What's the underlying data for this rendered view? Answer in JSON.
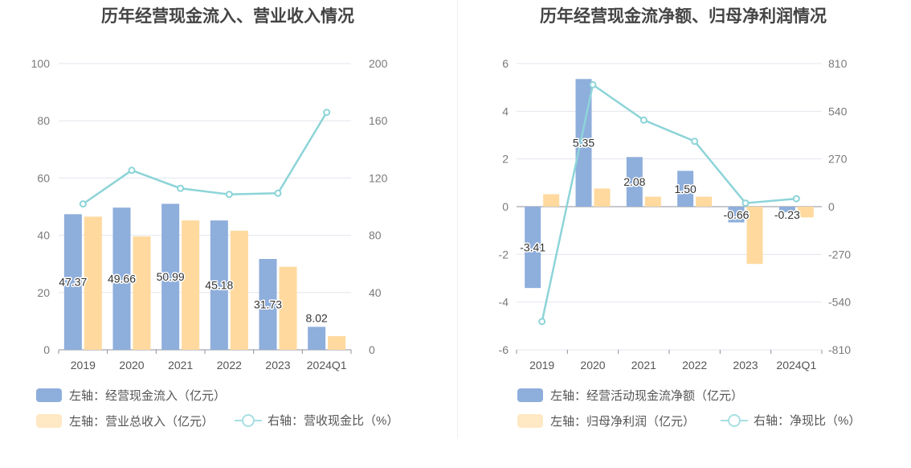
{
  "chart_data": [
    {
      "type": "bar",
      "title": "历年经营现金流入、营业收入情况",
      "categories": [
        "2019",
        "2020",
        "2021",
        "2022",
        "2023",
        "2024Q1"
      ],
      "left_axis": {
        "ylim": [
          0,
          100
        ],
        "ticks": [
          "0",
          "20",
          "40",
          "60",
          "80",
          "100"
        ]
      },
      "right_axis": {
        "ylim": [
          0,
          200
        ],
        "ticks": [
          "0",
          "40",
          "80",
          "120",
          "160",
          "200"
        ]
      },
      "series": [
        {
          "name": "左轴：经营现金流入（亿元）",
          "kind": "bar",
          "axis": "left",
          "color": "#8eaedc",
          "values": [
            47.37,
            49.66,
            50.99,
            45.18,
            31.73,
            8.02
          ],
          "labels": [
            "47.37",
            "49.66",
            "50.99",
            "45.18",
            "31.73",
            "8.02"
          ]
        },
        {
          "name": "左轴：营业总收入（亿元）",
          "kind": "bar",
          "axis": "left",
          "color": "#ffd99e",
          "values": [
            46.5,
            39.6,
            45.2,
            41.6,
            29.0,
            4.8
          ]
        },
        {
          "name": "右轴：营收现金比（%）",
          "kind": "line",
          "axis": "right",
          "color": "#8dd4d8",
          "values": [
            101.9,
            125.4,
            112.8,
            108.6,
            109.4,
            165.9
          ]
        }
      ],
      "grid": true
    },
    {
      "type": "bar",
      "title": "历年经营现金流净额、归母净利润情况",
      "categories": [
        "2019",
        "2020",
        "2021",
        "2022",
        "2023",
        "2024Q1"
      ],
      "left_axis": {
        "ylim": [
          -6,
          6
        ],
        "ticks": [
          "-6",
          "-4",
          "-2",
          "0",
          "2",
          "4",
          "6"
        ]
      },
      "right_axis": {
        "ylim": [
          -810,
          810
        ],
        "ticks": [
          "-810",
          "-540",
          "-270",
          "0",
          "270",
          "540",
          "810"
        ]
      },
      "series": [
        {
          "name": "左轴：经营活动现金流净额（亿元）",
          "kind": "bar",
          "axis": "left",
          "color": "#8eaedc",
          "values": [
            -3.41,
            5.35,
            2.08,
            1.5,
            -0.66,
            -0.23
          ],
          "labels": [
            "-3.41",
            "5.35",
            "2.08",
            "1.50",
            "-0.66",
            "-0.23"
          ]
        },
        {
          "name": "左轴：归母净利润（亿元）",
          "kind": "bar",
          "axis": "left",
          "color": "#ffd99e",
          "values": [
            0.52,
            0.76,
            0.42,
            0.42,
            -2.4,
            -0.45
          ]
        },
        {
          "name": "右轴：净现比（%）",
          "kind": "line",
          "axis": "right",
          "color": "#8dd4d8",
          "values": [
            -650,
            690,
            490,
            370,
            20,
            45
          ]
        }
      ],
      "grid": true
    }
  ]
}
